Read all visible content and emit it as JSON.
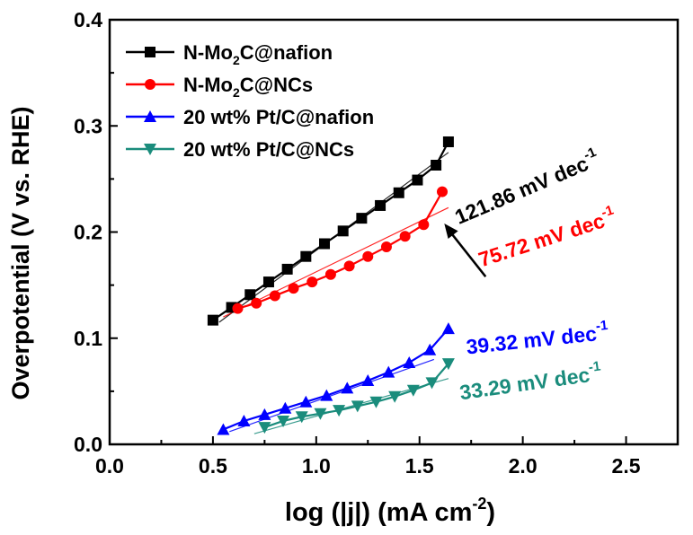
{
  "chart_data": {
    "type": "line",
    "title": "",
    "xlabel": "log (|j|) (mA cm",
    "xlabel_sup": "-2",
    "xlabel_end": ")",
    "ylabel": "Overpotential (V vs. RHE)",
    "xlim": [
      0.0,
      2.75
    ],
    "ylim": [
      0.0,
      0.4
    ],
    "xticks": [
      "0.0",
      "0.5",
      "1.0",
      "1.5",
      "2.0",
      "2.5"
    ],
    "yticks": [
      "0.0",
      "0.1",
      "0.2",
      "0.3",
      "0.4"
    ],
    "legend_position": "top-left",
    "series": [
      {
        "name": "N-Mo2C@nafion",
        "legend_parts": [
          "N-Mo",
          "2",
          "C@nafion"
        ],
        "color": "#000000",
        "marker": "square",
        "x": [
          0.5,
          0.59,
          0.68,
          0.77,
          0.86,
          0.95,
          1.04,
          1.13,
          1.22,
          1.31,
          1.4,
          1.49,
          1.58,
          1.64
        ],
        "y": [
          0.117,
          0.129,
          0.141,
          0.153,
          0.165,
          0.177,
          0.189,
          0.201,
          0.213,
          0.225,
          0.237,
          0.249,
          0.263,
          0.285
        ],
        "fit_x": [
          0.53,
          1.64
        ],
        "fit_y": [
          0.115,
          0.275
        ]
      },
      {
        "name": "N-Mo2C@NCs",
        "legend_parts": [
          "N-Mo",
          "2",
          "C@NCs"
        ],
        "color": "#ff0000",
        "marker": "circle",
        "x": [
          0.62,
          0.71,
          0.8,
          0.89,
          0.98,
          1.07,
          1.16,
          1.25,
          1.34,
          1.43,
          1.52,
          1.61
        ],
        "y": [
          0.128,
          0.133,
          0.14,
          0.147,
          0.153,
          0.16,
          0.168,
          0.177,
          0.186,
          0.196,
          0.207,
          0.238
        ],
        "fit_x": [
          0.55,
          1.64
        ],
        "fit_y": [
          0.12,
          0.223
        ]
      },
      {
        "name": "20 wt% Pt/C@nafion",
        "legend_parts": [
          "20 wt% Pt/C@nafion"
        ],
        "color": "#0000ff",
        "marker": "triangle-up",
        "x": [
          0.55,
          0.65,
          0.75,
          0.85,
          0.95,
          1.05,
          1.15,
          1.25,
          1.35,
          1.45,
          1.55,
          1.64
        ],
        "y": [
          0.014,
          0.022,
          0.028,
          0.034,
          0.04,
          0.046,
          0.053,
          0.06,
          0.068,
          0.077,
          0.089,
          0.109
        ],
        "fit_x": [
          0.58,
          1.57
        ],
        "fit_y": [
          0.012,
          0.08
        ]
      },
      {
        "name": "20 wt% Pt/C@NCs",
        "legend_parts": [
          "20 wt% Pt/C@NCs"
        ],
        "color": "#1a8c7c",
        "marker": "triangle-down",
        "x": [
          0.75,
          0.84,
          0.93,
          1.02,
          1.11,
          1.2,
          1.29,
          1.38,
          1.47,
          1.56,
          1.64
        ],
        "y": [
          0.016,
          0.022,
          0.026,
          0.029,
          0.032,
          0.036,
          0.04,
          0.045,
          0.051,
          0.058,
          0.076
        ],
        "fit_x": [
          0.7,
          1.64
        ],
        "fit_y": [
          0.01,
          0.062
        ]
      }
    ],
    "annotations": [
      {
        "name": "tafel-slope-n-mo2c-nafion",
        "text": "121.86 mV dec",
        "sup": "-1",
        "color": "#000000",
        "x": 1.69,
        "y": 0.207,
        "angle": -23
      },
      {
        "name": "tafel-slope-n-mo2c-ncs",
        "text": "75.72 mV dec",
        "sup": "-1",
        "color": "#ff0000",
        "x": 1.8,
        "y": 0.167,
        "angle": -18
      },
      {
        "name": "tafel-slope-pt-c-nafion",
        "text": "39.32 mV dec",
        "sup": "-1",
        "color": "#0000ff",
        "x": 1.73,
        "y": 0.085,
        "angle": -6
      },
      {
        "name": "tafel-slope-pt-c-ncs",
        "text": "33.29 mV dec",
        "sup": "-1",
        "color": "#1a8c7c",
        "x": 1.7,
        "y": 0.042,
        "angle": -8
      }
    ],
    "arrow": {
      "from_x": 1.82,
      "from_y": 0.158,
      "to_x": 1.62,
      "to_y": 0.208
    }
  }
}
